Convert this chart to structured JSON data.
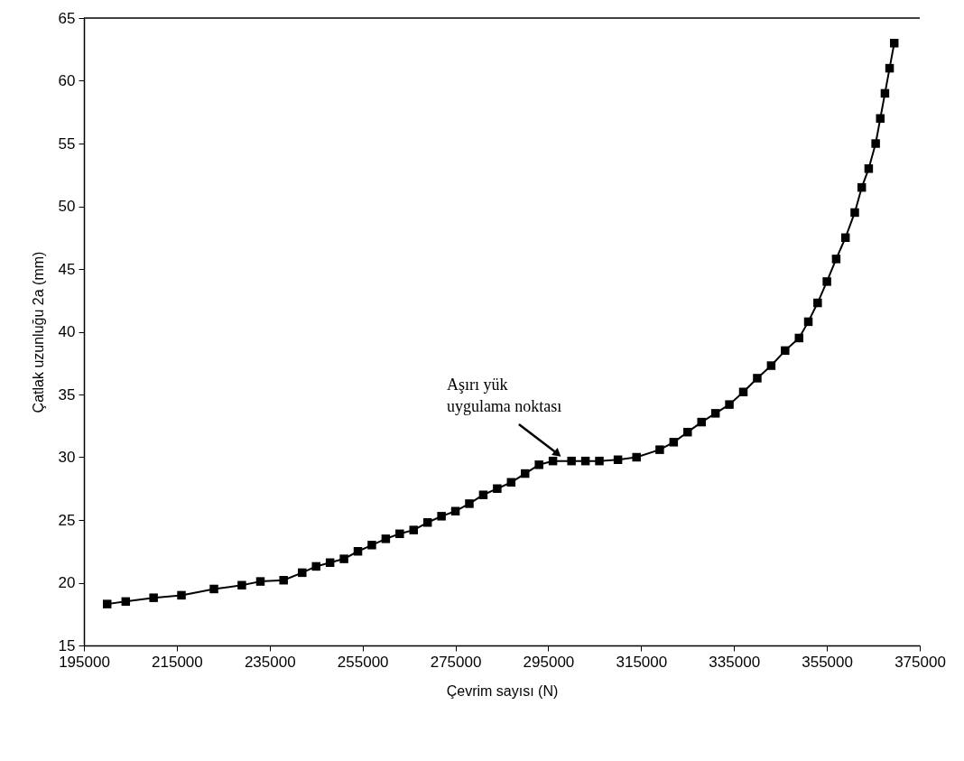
{
  "chart_data": {
    "type": "line",
    "xlabel": "Çevrim sayısı (N)",
    "ylabel": "Çatlak uzunluğu 2a (mm)",
    "x": [
      200000,
      204000,
      210000,
      216000,
      223000,
      229000,
      233000,
      238000,
      242000,
      245000,
      248000,
      251000,
      254000,
      257000,
      260000,
      263000,
      266000,
      269000,
      272000,
      275000,
      278000,
      281000,
      284000,
      287000,
      290000,
      293000,
      296000,
      300000,
      303000,
      306000,
      310000,
      314000,
      319000,
      322000,
      325000,
      328000,
      331000,
      334000,
      337000,
      340000,
      343000,
      346000,
      349000,
      351000,
      353000,
      355000,
      357000,
      359000,
      361000,
      362500,
      364000,
      365500,
      366500,
      367500,
      368500,
      369500
    ],
    "series": [
      {
        "color": "#000000",
        "values": [
          18.3,
          18.5,
          18.8,
          19.0,
          19.5,
          19.8,
          20.1,
          20.2,
          20.8,
          21.3,
          21.6,
          21.9,
          22.5,
          23.0,
          23.5,
          23.9,
          24.2,
          24.8,
          25.3,
          25.7,
          26.3,
          27.0,
          27.5,
          28.0,
          28.7,
          29.4,
          29.7,
          29.7,
          29.7,
          29.7,
          29.8,
          30.0,
          30.6,
          31.2,
          32.0,
          32.8,
          33.5,
          34.2,
          35.2,
          36.3,
          37.3,
          38.5,
          39.5,
          40.8,
          42.3,
          44.0,
          45.8,
          47.5,
          49.5,
          51.5,
          53.0,
          55.0,
          57.0,
          59.0,
          61.0,
          63.0
        ]
      }
    ],
    "xlim": [
      195000,
      375000
    ],
    "xticks": [
      195000,
      215000,
      235000,
      255000,
      275000,
      295000,
      315000,
      335000,
      355000,
      375000
    ],
    "ylim": [
      15,
      65
    ],
    "yticks": [
      15,
      20,
      25,
      30,
      35,
      40,
      45,
      50,
      55,
      60,
      65
    ],
    "annotations": [
      {
        "text": "Aşırı yük\nuygulama noktası",
        "x": 298000,
        "y": 29.9
      }
    ],
    "marker": "square",
    "line_style": "solid",
    "grid": false
  }
}
